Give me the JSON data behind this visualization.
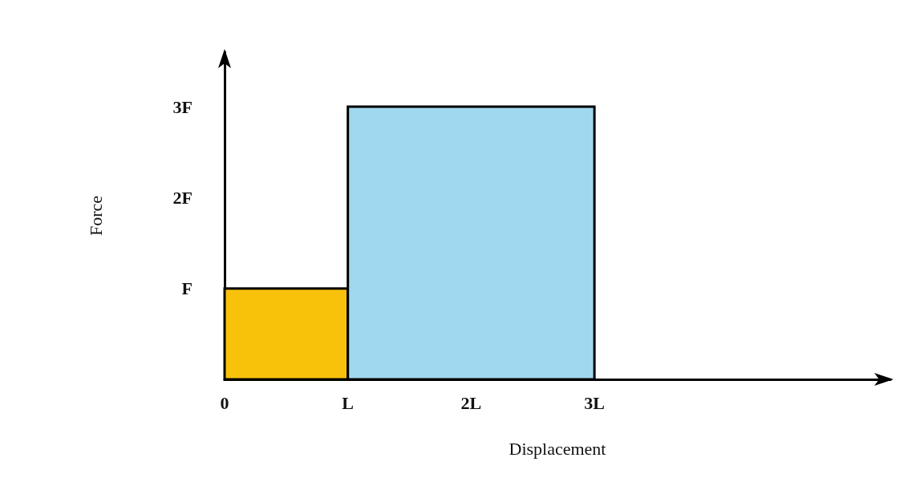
{
  "chart_data": {
    "type": "histogram",
    "xlabel": "Displacement",
    "ylabel": "Force",
    "bins": [
      0,
      1,
      3
    ],
    "values": [
      1,
      3
    ],
    "colors": [
      "#f9c20a",
      "#a0d8ef"
    ],
    "xlim": [
      0,
      5.4
    ],
    "ylim": [
      0,
      3.6
    ],
    "xticks": [
      {
        "value": 0,
        "label": "0"
      },
      {
        "value": 1,
        "label": "L"
      },
      {
        "value": 2,
        "label": "2L"
      },
      {
        "value": 3,
        "label": "3L"
      }
    ],
    "yticks": [
      {
        "value": 1,
        "label": "F"
      },
      {
        "value": 2,
        "label": "2F"
      },
      {
        "value": 3,
        "label": "3F"
      }
    ],
    "grid": false
  }
}
